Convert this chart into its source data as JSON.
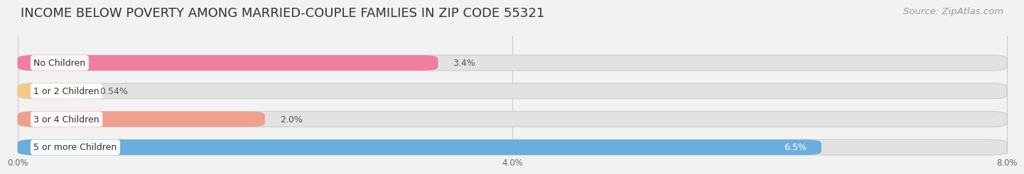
{
  "title": "INCOME BELOW POVERTY AMONG MARRIED-COUPLE FAMILIES IN ZIP CODE 55321",
  "source": "Source: ZipAtlas.com",
  "categories": [
    "No Children",
    "1 or 2 Children",
    "3 or 4 Children",
    "5 or more Children"
  ],
  "values": [
    3.4,
    0.54,
    2.0,
    6.5
  ],
  "bar_colors": [
    "#F07EA0",
    "#F5C98A",
    "#EFA090",
    "#6AAEDD"
  ],
  "label_colors": [
    "#444444",
    "#444444",
    "#444444",
    "#ffffff"
  ],
  "xlim_max": 8.0,
  "xtick_positions": [
    0.0,
    4.0,
    8.0
  ],
  "xtick_labels": [
    "0.0%",
    "4.0%",
    "8.0%"
  ],
  "background_color": "#f2f2f2",
  "bar_bg_color": "#e2e2e2",
  "title_fontsize": 13,
  "source_fontsize": 9.5,
  "bar_label_fontsize": 9,
  "category_fontsize": 9,
  "value_labels": [
    "3.4%",
    "0.54%",
    "2.0%",
    "6.5%"
  ],
  "value_label_inside": [
    false,
    false,
    false,
    true
  ]
}
